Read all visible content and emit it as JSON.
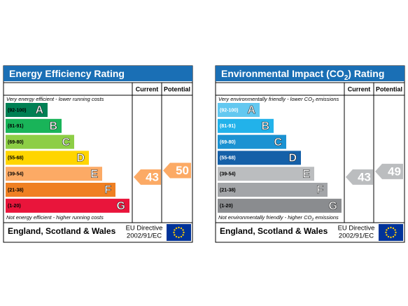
{
  "panels": [
    {
      "title": [
        "Energy Efficiency Rating"
      ],
      "columns": [
        "Current",
        "Potential"
      ],
      "top_note": [
        "Very energy efficient - lower running costs"
      ],
      "bottom_note": [
        "Not energy efficient - higher running costs"
      ],
      "bands": [
        {
          "range": "(92-100)",
          "letter": "A",
          "color": "#008054"
        },
        {
          "range": "(81-91)",
          "letter": "B",
          "color": "#19b459"
        },
        {
          "range": "(69-80)",
          "letter": "C",
          "color": "#8dce46"
        },
        {
          "range": "(55-68)",
          "letter": "D",
          "color": "#ffd500"
        },
        {
          "range": "(39-54)",
          "letter": "E",
          "color": "#fcaa65"
        },
        {
          "range": "(21-38)",
          "letter": "F",
          "color": "#ef8023"
        },
        {
          "range": "(1-20)",
          "letter": "G",
          "color": "#e9153b"
        }
      ],
      "current": 43,
      "potential": 50,
      "footer": "England, Scotland & Wales",
      "directive": [
        "EU Directive",
        "2002/91/EC"
      ]
    },
    {
      "title": [
        "Environmental Impact (CO",
        "2",
        ") Rating"
      ],
      "columns": [
        "Current",
        "Potential"
      ],
      "top_note": [
        "Very environmentally friendly - lower CO",
        "2",
        " emissions"
      ],
      "bottom_note": [
        "Not environmentally friendly - higher CO",
        "2",
        " emissions"
      ],
      "bands": [
        {
          "range": "(92-100)",
          "letter": "A",
          "color": "#63c8f0"
        },
        {
          "range": "(81-91)",
          "letter": "B",
          "color": "#22b2ea"
        },
        {
          "range": "(69-80)",
          "letter": "C",
          "color": "#1b92d2"
        },
        {
          "range": "(55-68)",
          "letter": "D",
          "color": "#1560a8"
        },
        {
          "range": "(39-54)",
          "letter": "E",
          "color": "#bbbdbf"
        },
        {
          "range": "(21-38)",
          "letter": "F",
          "color": "#a3a5a8"
        },
        {
          "range": "(1-20)",
          "letter": "G",
          "color": "#8a8c8f"
        }
      ],
      "current": 43,
      "potential": 49,
      "footer": "England, Scotland & Wales",
      "directive": [
        "EU Directive",
        "2002/91/EC"
      ]
    }
  ]
}
